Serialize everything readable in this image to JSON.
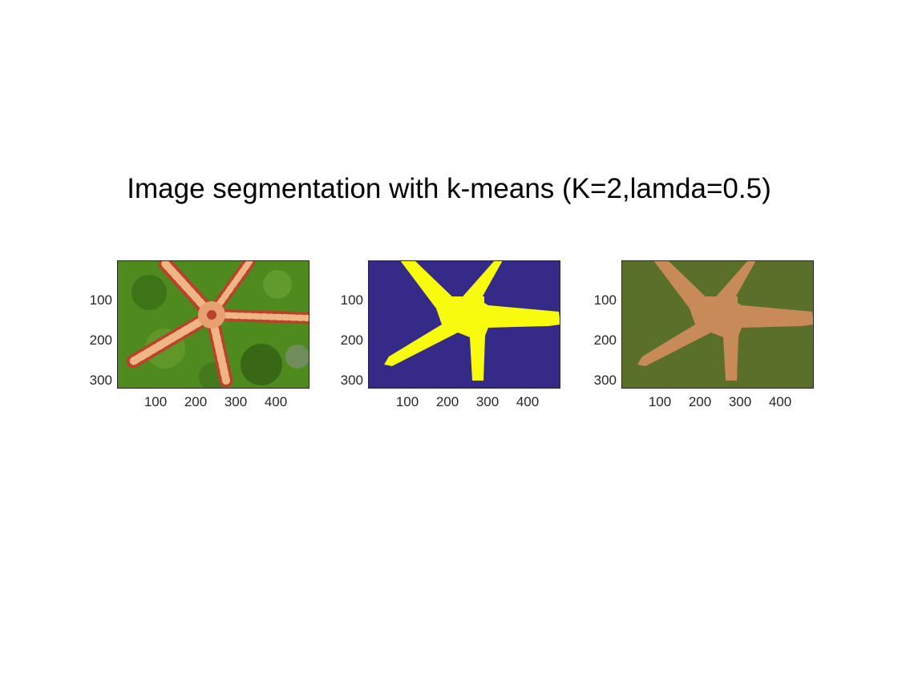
{
  "figure": {
    "title": "Image segmentation with k-means (K=2,lamda=0.5)"
  },
  "panels": [
    {
      "name": "original-image",
      "description_colors": {
        "background": "#4f8a1f",
        "star": "#e8a070",
        "spots": "#b8432a"
      },
      "yticks": [
        "100",
        "200",
        "300"
      ],
      "xticks": [
        "100",
        "200",
        "300",
        "400"
      ]
    },
    {
      "name": "label-map",
      "colors": {
        "background": "#352a87",
        "star": "#f9fb0e"
      },
      "yticks": [
        "100",
        "200",
        "300"
      ],
      "xticks": [
        "100",
        "200",
        "300",
        "400"
      ]
    },
    {
      "name": "segmented-image",
      "colors": {
        "background": "#5a702a",
        "star": "#c88a58"
      },
      "yticks": [
        "100",
        "200",
        "300"
      ],
      "xticks": [
        "100",
        "200",
        "300",
        "400"
      ]
    }
  ]
}
